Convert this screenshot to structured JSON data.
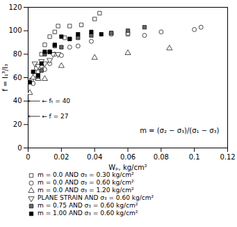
{
  "chart_data": {
    "type": "scatter",
    "xlabel": "Wₚ, kg/cm²",
    "ylabel": "f = I₁³/I₃",
    "xlim": [
      0,
      0.12
    ],
    "ylim": [
      0,
      120
    ],
    "xticks": [
      0,
      0.02,
      0.04,
      0.06,
      0.08,
      0.1,
      0.12
    ],
    "yticks": [
      0,
      20,
      40,
      60,
      80,
      100,
      120
    ],
    "grid": false,
    "annotations": [
      {
        "text": "← fₜ = 40",
        "y": 40
      },
      {
        "text": "← f = 27",
        "y": 27
      },
      {
        "text": "m = (σ₂ − σ₃)/(σ₁ − σ₃)"
      }
    ],
    "series": [
      {
        "name": "m = 0.0 AND σ₃ = 0.30 kg/cm²",
        "marker": "square",
        "color": "white",
        "x": [
          0.002,
          0.004,
          0.006,
          0.008,
          0.01,
          0.013,
          0.016,
          0.018,
          0.022,
          0.025,
          0.032,
          0.04,
          0.043,
          0.05,
          0.06
        ],
        "values": [
          58,
          62,
          65,
          80,
          88,
          95,
          99,
          104,
          94,
          104,
          105,
          110,
          115,
          98,
          97
        ]
      },
      {
        "name": "m = 0.0 AND σ₃ = 0.60 kg/cm²",
        "marker": "circle",
        "color": "white",
        "x": [
          0.003,
          0.005,
          0.008,
          0.01,
          0.013,
          0.016,
          0.02,
          0.025,
          0.03,
          0.038,
          0.05,
          0.06,
          0.07,
          0.08,
          0.1,
          0.104
        ],
        "values": [
          55,
          68,
          70,
          67,
          72,
          80,
          79,
          86,
          87,
          91,
          97,
          98,
          96,
          99,
          101,
          103
        ]
      },
      {
        "name": "m = 0.0 AND σ₃ = 1.20 kg/cm²",
        "marker": "triangle-up",
        "color": "white",
        "x": [
          0.001,
          0.003,
          0.006,
          0.01,
          0.02,
          0.04,
          0.06,
          0.085
        ],
        "values": [
          47,
          60,
          59,
          59,
          70,
          77,
          81,
          85
        ]
      },
      {
        "name": "PLANE STRAIN AND σ₃ = 0.60 kg/cm²",
        "marker": "triangle-down",
        "color": "white",
        "x": [
          0.004,
          0.006,
          0.008,
          0.01,
          0.013,
          0.015,
          0.018
        ],
        "values": [
          72,
          70,
          74,
          72,
          75,
          80,
          80
        ]
      },
      {
        "name": "m = 0.75 AND σ₃ = 0.60 kg/cm²",
        "marker": "square",
        "color": "#666666",
        "x": [
          0.006,
          0.008,
          0.01,
          0.013,
          0.016,
          0.02,
          0.025,
          0.03,
          0.038,
          0.05,
          0.06,
          0.07
        ],
        "values": [
          61,
          66,
          80,
          82,
          87,
          86,
          93,
          94,
          96,
          98,
          100,
          103
        ]
      },
      {
        "name": "m = 1.00 AND σ₃ = 0.60 kg/cm²",
        "marker": "square",
        "color": "black",
        "x": [
          0.001,
          0.003,
          0.006,
          0.008,
          0.01,
          0.013,
          0.016,
          0.02,
          0.025,
          0.03,
          0.038,
          0.044
        ],
        "values": [
          56,
          65,
          62,
          72,
          82,
          82,
          88,
          95,
          93,
          97,
          99,
          97
        ]
      }
    ]
  }
}
